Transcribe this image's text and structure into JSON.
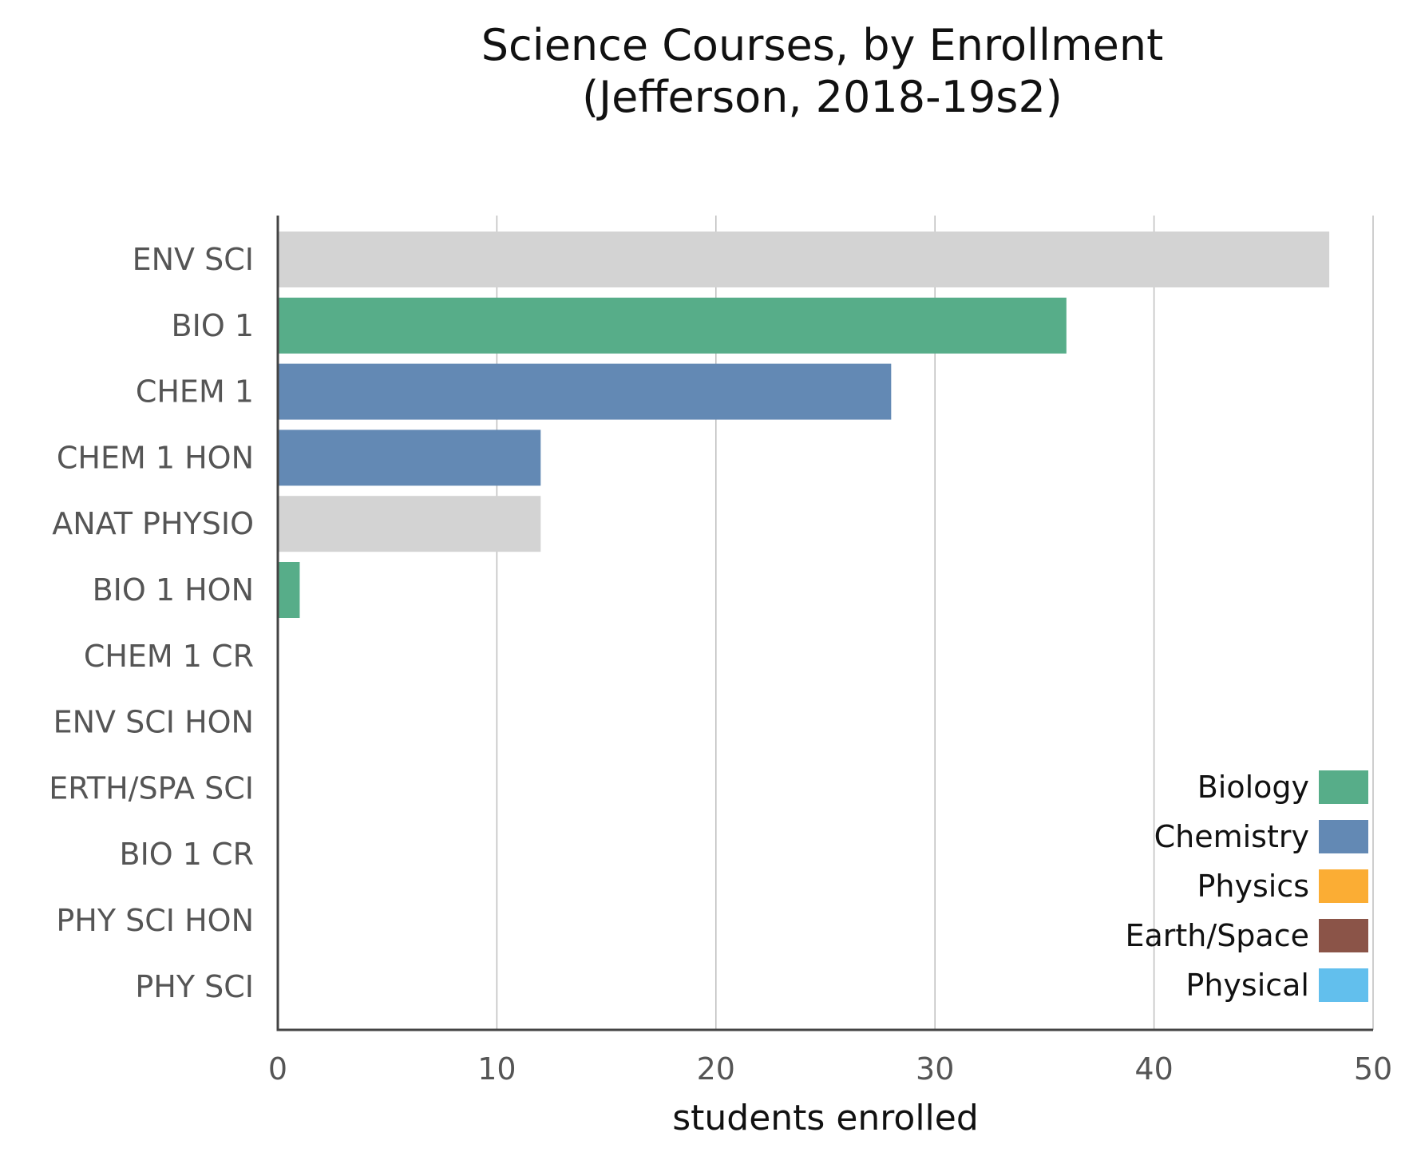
{
  "chart_data": {
    "type": "bar",
    "orientation": "horizontal",
    "title": [
      "Science Courses, by Enrollment",
      "(Jefferson, 2018-19s2)"
    ],
    "xlabel": "students enrolled",
    "ylabel": "",
    "xlim": [
      0,
      50
    ],
    "xticks": [
      0,
      10,
      20,
      30,
      40,
      50
    ],
    "grid": "vertical",
    "legend_position": "bottom-right",
    "categories": [
      "ENV SCI",
      "BIO 1",
      "CHEM 1",
      "CHEM 1 HON",
      "ANAT PHYSIO",
      "BIO 1 HON",
      "CHEM 1 CR",
      "ENV SCI HON",
      "ERTH/SPA SCI",
      "BIO 1 CR",
      "PHY SCI HON",
      "PHY SCI"
    ],
    "values": [
      48,
      36,
      28,
      12,
      12,
      1,
      0,
      0,
      0,
      0,
      0,
      0
    ],
    "bar_colors": [
      "#d3d3d3",
      "#57ad89",
      "#6389b4",
      "#6389b4",
      "#d3d3d3",
      "#57ad89",
      "#d3d3d3",
      "#d3d3d3",
      "#d3d3d3",
      "#d3d3d3",
      "#d3d3d3",
      "#d3d3d3"
    ],
    "legend": [
      {
        "label": "Biology",
        "color": "#57ad89"
      },
      {
        "label": "Chemistry",
        "color": "#6389b4"
      },
      {
        "label": "Physics",
        "color": "#fbad34"
      },
      {
        "label": "Earth/Space",
        "color": "#8b5448"
      },
      {
        "label": "Physical",
        "color": "#62bfed"
      }
    ]
  }
}
